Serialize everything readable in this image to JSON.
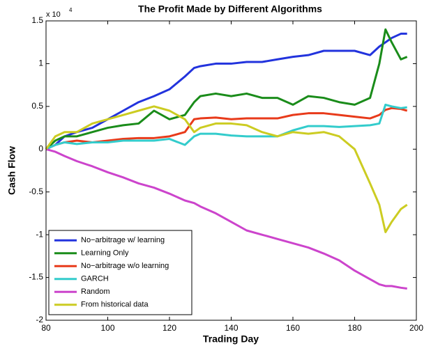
{
  "chart_data": {
    "type": "line",
    "title": "The Profit Made by Different Algorithms",
    "x_label": "Trading Day",
    "y_label": "Cash Flow",
    "y_multiplier": "x 10",
    "y_multiplier_exponent": "4",
    "x": [
      80,
      83,
      86,
      90,
      95,
      100,
      105,
      110,
      115,
      120,
      125,
      128,
      130,
      135,
      140,
      145,
      150,
      155,
      160,
      165,
      170,
      175,
      180,
      185,
      188,
      190,
      192,
      195,
      197
    ],
    "xlim": [
      80,
      200
    ],
    "xticks": [
      80,
      100,
      120,
      140,
      160,
      180,
      200
    ],
    "ylim": [
      -2,
      1.5
    ],
    "yticks": [
      -2,
      -1.5,
      -1,
      -0.5,
      0,
      0.5,
      1,
      1.5
    ],
    "legend": "lower left",
    "series": [
      {
        "name": "No−arbitrage w/ learning",
        "color": "#2233dd",
        "values": [
          0,
          0.05,
          0.15,
          0.2,
          0.25,
          0.35,
          0.45,
          0.55,
          0.62,
          0.7,
          0.85,
          0.95,
          0.97,
          1.0,
          1.0,
          1.02,
          1.02,
          1.05,
          1.08,
          1.1,
          1.15,
          1.15,
          1.15,
          1.1,
          1.2,
          1.25,
          1.3,
          1.35,
          1.35
        ]
      },
      {
        "name": "Learning Only",
        "color": "#1a8c1a",
        "values": [
          0,
          0.1,
          0.15,
          0.15,
          0.2,
          0.25,
          0.28,
          0.3,
          0.45,
          0.35,
          0.4,
          0.55,
          0.62,
          0.65,
          0.62,
          0.65,
          0.6,
          0.6,
          0.52,
          0.62,
          0.6,
          0.55,
          0.52,
          0.6,
          1.0,
          1.4,
          1.25,
          1.05,
          1.08
        ]
      },
      {
        "name": "No−arbitrage w/o learning",
        "color": "#e83a1a",
        "values": [
          0,
          0.05,
          0.08,
          0.1,
          0.08,
          0.1,
          0.12,
          0.13,
          0.13,
          0.15,
          0.2,
          0.35,
          0.36,
          0.37,
          0.35,
          0.36,
          0.36,
          0.36,
          0.4,
          0.42,
          0.42,
          0.4,
          0.38,
          0.36,
          0.4,
          0.46,
          0.48,
          0.47,
          0.45
        ]
      },
      {
        "name": "GARCH",
        "color": "#33cccc",
        "values": [
          0,
          0.05,
          0.08,
          0.06,
          0.08,
          0.08,
          0.1,
          0.1,
          0.1,
          0.12,
          0.05,
          0.15,
          0.18,
          0.18,
          0.16,
          0.15,
          0.15,
          0.15,
          0.22,
          0.27,
          0.27,
          0.26,
          0.27,
          0.28,
          0.3,
          0.52,
          0.5,
          0.48,
          0.49
        ]
      },
      {
        "name": "Random",
        "color": "#cc44cc",
        "values": [
          0,
          -0.03,
          -0.08,
          -0.14,
          -0.2,
          -0.27,
          -0.33,
          -0.4,
          -0.45,
          -0.52,
          -0.6,
          -0.63,
          -0.67,
          -0.75,
          -0.85,
          -0.95,
          -1.0,
          -1.05,
          -1.1,
          -1.15,
          -1.22,
          -1.3,
          -1.42,
          -1.52,
          -1.58,
          -1.6,
          -1.6,
          -1.62,
          -1.63
        ]
      },
      {
        "name": "From historical data",
        "color": "#cccc22",
        "values": [
          0,
          0.15,
          0.2,
          0.2,
          0.3,
          0.35,
          0.4,
          0.45,
          0.5,
          0.45,
          0.35,
          0.2,
          0.25,
          0.3,
          0.3,
          0.28,
          0.2,
          0.15,
          0.2,
          0.18,
          0.2,
          0.15,
          0.0,
          -0.4,
          -0.65,
          -0.97,
          -0.85,
          -0.7,
          -0.65
        ]
      }
    ]
  }
}
